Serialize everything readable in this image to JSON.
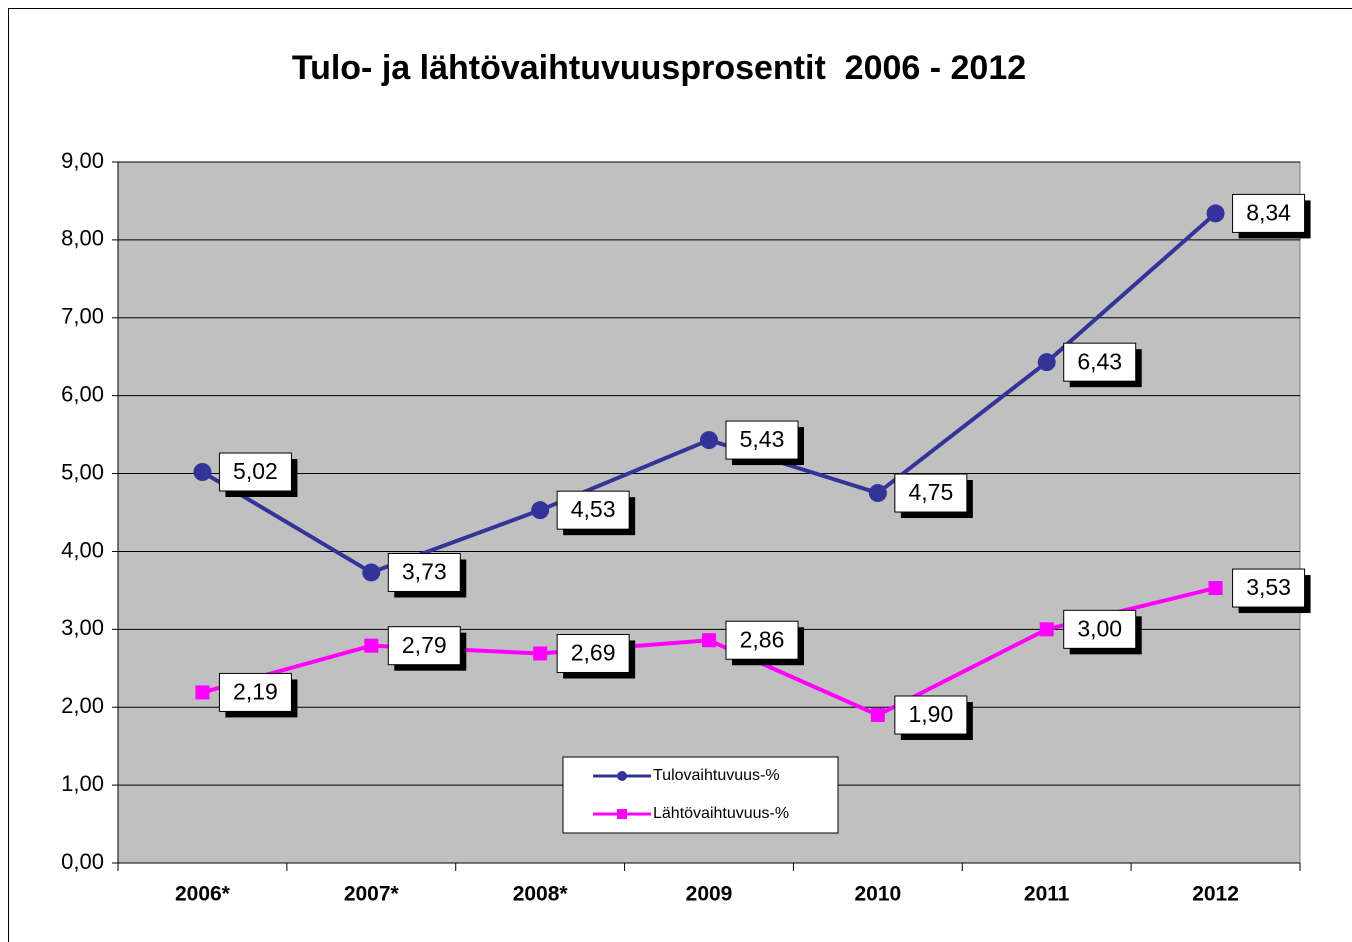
{
  "chart_data": {
    "type": "line",
    "title": "Tulo- ja lähtövaihtuvuusprosentit  2006 - 2012",
    "categories": [
      "2006*",
      "2007*",
      "2008*",
      "2009",
      "2010",
      "2011",
      "2012"
    ],
    "series": [
      {
        "name": "Tulovaihtuvuus-%",
        "color": "#333399",
        "marker": "circle",
        "values": [
          5.02,
          3.73,
          4.53,
          5.43,
          4.75,
          6.43,
          8.34
        ],
        "value_labels": [
          "5,02",
          "3,73",
          "4,53",
          "5,43",
          "4,75",
          "6,43",
          "8,34"
        ]
      },
      {
        "name": "Lähtövaihtuvuus-%",
        "color": "#ff00ff",
        "marker": "square",
        "values": [
          2.19,
          2.79,
          2.69,
          2.86,
          1.9,
          3.0,
          3.53
        ],
        "value_labels": [
          "2,19",
          "2,79",
          "2,69",
          "2,86",
          "1,90",
          "3,00",
          "3,53"
        ]
      }
    ],
    "ylim": [
      0,
      9
    ],
    "yticks": [
      {
        "value": 0,
        "label": "0,00"
      },
      {
        "value": 1,
        "label": "1,00"
      },
      {
        "value": 2,
        "label": "2,00"
      },
      {
        "value": 3,
        "label": "3,00"
      },
      {
        "value": 4,
        "label": "4,00"
      },
      {
        "value": 5,
        "label": "5,00"
      },
      {
        "value": 6,
        "label": "6,00"
      },
      {
        "value": 7,
        "label": "7,00"
      },
      {
        "value": 8,
        "label": "8,00"
      },
      {
        "value": 9,
        "label": "9,00"
      }
    ],
    "grid": true,
    "legend": "bottom"
  }
}
